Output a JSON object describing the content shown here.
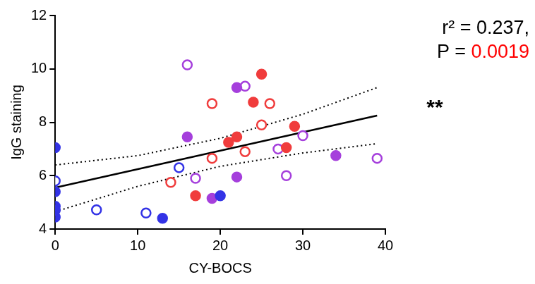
{
  "chart_data": {
    "type": "scatter",
    "x_label": "CY-BOCS",
    "y_label": "IgG staining",
    "xlim": [
      0,
      40
    ],
    "xticks": [
      0,
      10,
      20,
      30,
      40
    ],
    "ylim": [
      4,
      12
    ],
    "yticks": [
      4,
      6,
      8,
      10,
      12
    ],
    "grid": false,
    "series": [
      {
        "type": "scatter",
        "color": "#3333e6",
        "marker": "circle",
        "x": [
          0,
          0,
          0,
          0,
          0,
          13,
          20
        ],
        "values": [
          7.05,
          5.4,
          4.85,
          4.7,
          4.45,
          4.4,
          5.25
        ]
      },
      {
        "type": "scatter",
        "color": "#3333e6",
        "marker": "circle_open",
        "x": [
          0,
          5,
          11,
          15
        ],
        "values": [
          5.8,
          4.72,
          4.6,
          6.3
        ]
      },
      {
        "type": "scatter",
        "color": "#f03c3c",
        "marker": "circle",
        "x": [
          17,
          21,
          22,
          24,
          25,
          28,
          29
        ],
        "values": [
          5.25,
          7.25,
          7.45,
          8.75,
          9.8,
          7.05,
          7.85
        ]
      },
      {
        "type": "scatter",
        "color": "#f03c3c",
        "marker": "circle_open",
        "x": [
          14,
          19,
          19,
          23,
          25,
          26
        ],
        "values": [
          5.75,
          8.7,
          6.65,
          6.9,
          7.9,
          8.7
        ]
      },
      {
        "type": "scatter",
        "color": "#a53fdc",
        "marker": "circle",
        "x": [
          16,
          19,
          22,
          22,
          34
        ],
        "values": [
          7.45,
          5.15,
          9.3,
          5.95,
          6.75
        ]
      },
      {
        "type": "scatter",
        "color": "#a53fdc",
        "marker": "circle_open",
        "x": [
          16,
          17,
          23,
          27,
          28,
          30,
          39
        ],
        "values": [
          10.15,
          5.9,
          9.35,
          7.0,
          6.0,
          7.5,
          6.65
        ]
      },
      {
        "type": "line",
        "color": "#000000",
        "line_style": "solid",
        "x": [
          0,
          39
        ],
        "values": [
          5.55,
          8.25
        ]
      },
      {
        "type": "line",
        "color": "#000000",
        "line_style": "dotted",
        "x": [
          0,
          10,
          20,
          30,
          39
        ],
        "values": [
          6.4,
          6.75,
          7.4,
          8.3,
          9.3
        ]
      },
      {
        "type": "line",
        "color": "#000000",
        "line_style": "dotted",
        "x": [
          0,
          10,
          20,
          30,
          39
        ],
        "values": [
          4.65,
          5.6,
          6.35,
          6.85,
          7.2
        ]
      }
    ],
    "annotations": [
      {
        "parts": [
          {
            "text": "r² = 0.237,",
            "color": "#000000"
          }
        ]
      },
      {
        "parts": [
          {
            "text": "P = ",
            "color": "#000000"
          },
          {
            "text": "0.0019",
            "color": "#ff0000"
          }
        ]
      },
      {
        "text": "**",
        "color": "#000000",
        "x": 39,
        "y": 8.25
      }
    ]
  }
}
